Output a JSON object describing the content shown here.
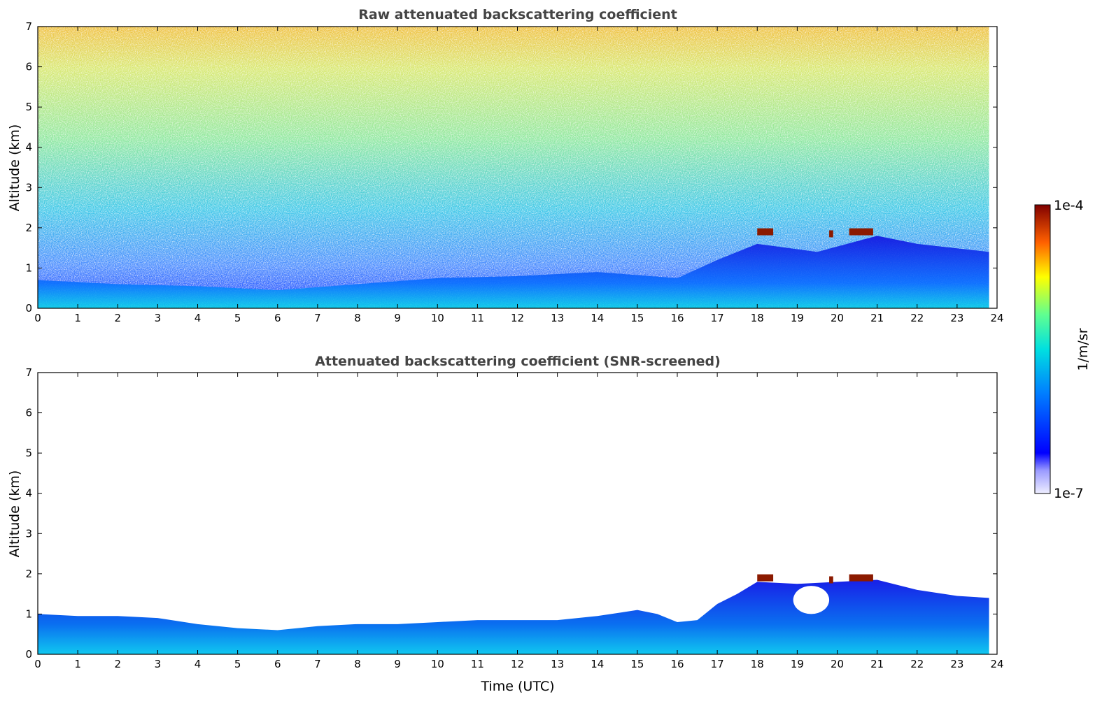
{
  "chart_data": [
    {
      "type": "heatmap",
      "title": "Raw attenuated backscattering coefficient",
      "xlabel": "",
      "ylabel": "Altitude (km)",
      "xlim": [
        0,
        24
      ],
      "ylim": [
        0,
        7
      ],
      "x_ticks": [
        0,
        1,
        2,
        3,
        4,
        5,
        6,
        7,
        8,
        9,
        10,
        11,
        12,
        13,
        14,
        15,
        16,
        17,
        18,
        19,
        20,
        21,
        22,
        23,
        24
      ],
      "y_ticks": [
        0,
        1,
        2,
        3,
        4,
        5,
        6,
        7
      ],
      "data_x_end": 23.8,
      "boundary_layer_top_km": [
        {
          "x": 0,
          "y": 0.7
        },
        {
          "x": 2,
          "y": 0.6
        },
        {
          "x": 4,
          "y": 0.55
        },
        {
          "x": 6,
          "y": 0.45
        },
        {
          "x": 8,
          "y": 0.6
        },
        {
          "x": 10,
          "y": 0.75
        },
        {
          "x": 12,
          "y": 0.8
        },
        {
          "x": 14,
          "y": 0.9
        },
        {
          "x": 16,
          "y": 0.75
        },
        {
          "x": 17,
          "y": 1.2
        },
        {
          "x": 18,
          "y": 1.6
        },
        {
          "x": 19.5,
          "y": 1.4
        },
        {
          "x": 21,
          "y": 1.8
        },
        {
          "x": 22,
          "y": 1.6
        },
        {
          "x": 23.8,
          "y": 1.4
        }
      ],
      "cloud_features": [
        {
          "x_start": 18.0,
          "x_end": 18.4,
          "altitude_km": 1.9
        },
        {
          "x_start": 19.8,
          "x_end": 19.9,
          "altitude_km": 1.85
        },
        {
          "x_start": 20.3,
          "x_end": 20.9,
          "altitude_km": 1.9
        }
      ]
    },
    {
      "type": "heatmap",
      "title": "Attenuated backscattering coefficient (SNR-screened)",
      "xlabel": "Time (UTC)",
      "ylabel": "Altitude (km)",
      "xlim": [
        0,
        24
      ],
      "ylim": [
        0,
        7
      ],
      "x_ticks": [
        0,
        1,
        2,
        3,
        4,
        5,
        6,
        7,
        8,
        9,
        10,
        11,
        12,
        13,
        14,
        15,
        16,
        17,
        18,
        19,
        20,
        21,
        22,
        23,
        24
      ],
      "y_ticks": [
        0,
        1,
        2,
        3,
        4,
        5,
        6,
        7
      ],
      "data_x_end": 23.8,
      "screened_top_km": [
        {
          "x": 0,
          "y": 1.0
        },
        {
          "x": 1,
          "y": 0.95
        },
        {
          "x": 2,
          "y": 0.95
        },
        {
          "x": 3,
          "y": 0.9
        },
        {
          "x": 4,
          "y": 0.75
        },
        {
          "x": 5,
          "y": 0.65
        },
        {
          "x": 6,
          "y": 0.6
        },
        {
          "x": 7,
          "y": 0.7
        },
        {
          "x": 8,
          "y": 0.75
        },
        {
          "x": 9,
          "y": 0.75
        },
        {
          "x": 10,
          "y": 0.8
        },
        {
          "x": 11,
          "y": 0.85
        },
        {
          "x": 12,
          "y": 0.85
        },
        {
          "x": 13,
          "y": 0.85
        },
        {
          "x": 14,
          "y": 0.95
        },
        {
          "x": 15,
          "y": 1.1
        },
        {
          "x": 15.5,
          "y": 1.0
        },
        {
          "x": 16,
          "y": 0.8
        },
        {
          "x": 16.5,
          "y": 0.85
        },
        {
          "x": 17,
          "y": 1.25
        },
        {
          "x": 17.5,
          "y": 1.5
        },
        {
          "x": 18,
          "y": 1.8
        },
        {
          "x": 19,
          "y": 1.75
        },
        {
          "x": 20,
          "y": 1.8
        },
        {
          "x": 21,
          "y": 1.85
        },
        {
          "x": 22,
          "y": 1.6
        },
        {
          "x": 23,
          "y": 1.45
        },
        {
          "x": 23.8,
          "y": 1.4
        }
      ],
      "gaps": [
        {
          "x_start": 18.9,
          "x_end": 19.8,
          "y_low": 1.0,
          "y_high": 1.7
        }
      ],
      "cloud_features": [
        {
          "x_start": 18.0,
          "x_end": 18.4,
          "altitude_km": 1.9
        },
        {
          "x_start": 19.8,
          "x_end": 19.9,
          "altitude_km": 1.85
        },
        {
          "x_start": 20.3,
          "x_end": 20.9,
          "altitude_km": 1.9
        }
      ]
    }
  ],
  "colorbar": {
    "label": "1/m/sr",
    "max_label": "1e-4",
    "min_label": "1e-7",
    "colormap": "jet"
  }
}
